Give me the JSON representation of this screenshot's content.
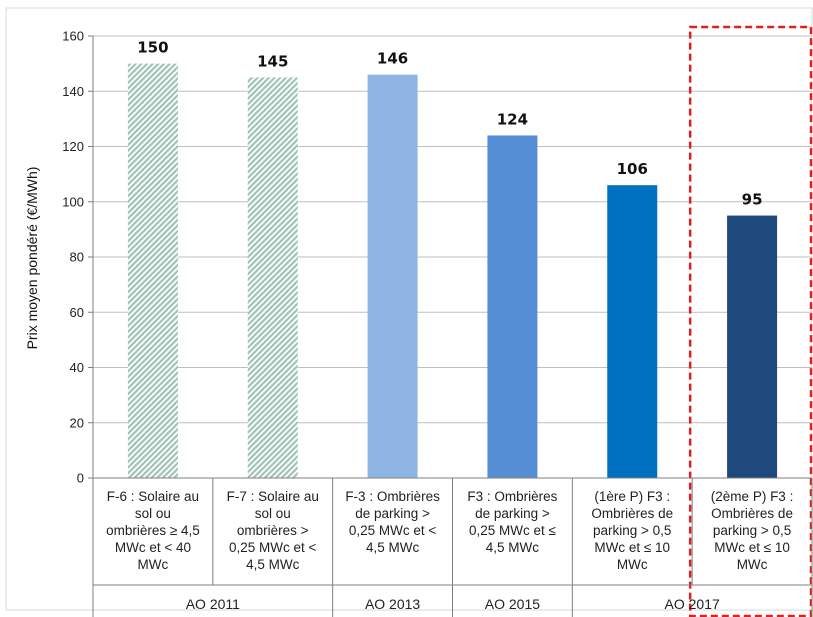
{
  "chart_data": {
    "type": "bar",
    "ylabel": "Prix moyen pondéré (€/MWh)",
    "ylim": [
      0,
      160
    ],
    "yticks": [
      0,
      20,
      40,
      60,
      80,
      100,
      120,
      140,
      160
    ],
    "grid": true,
    "categories": [
      "F-6 : Solaire au sol ou ombrières ≥ 4,5 MWc et < 40 MWc",
      "F-7 : Solaire au sol ou ombrières > 0,25 MWc et < 4,5 MWc",
      "F-3 : Ombrières de parking > 0,25 MWc et < 4,5 MWc",
      "F3 : Ombrières de parking > 0,25 MWc et ≤ 4,5 MWc",
      "(1ère P) F3 : Ombrières de parking > 0,5 MWc et ≤ 10 MWc",
      "(2ème P) F3 : Ombrières de parking > 0,5 MWc et ≤ 10 MWc"
    ],
    "category_lines": [
      [
        "F-6 : Solaire au",
        "sol ou",
        "ombrières ≥ 4,5",
        "MWc et < 40",
        "MWc"
      ],
      [
        "F-7 : Solaire au",
        "sol ou",
        "ombrières >",
        "0,25 MWc et <",
        "4,5 MWc"
      ],
      [
        "F-3 : Ombrières",
        "de parking  >",
        "0,25 MWc et <",
        "4,5 MWc"
      ],
      [
        "F3 : Ombrières",
        "de parking  >",
        "0,25 MWc et ≤",
        "4,5 MWc"
      ],
      [
        "(1ère P) F3 :",
        "Ombrières de",
        "parking  > 0,5",
        "MWc et ≤ 10",
        "MWc"
      ],
      [
        "(2ème P) F3 :",
        "Ombrières de",
        "parking  > 0,5",
        "MWc et ≤ 10",
        "MWc"
      ]
    ],
    "values": [
      150,
      145,
      146,
      124,
      106,
      95
    ],
    "data_labels": [
      "150",
      "145",
      "146",
      "124",
      "106",
      "95"
    ],
    "bar_colors": [
      "#a9c9bc",
      "#a9c9bc",
      "#8db4e2",
      "#558ed5",
      "#0070c0",
      "#1f497d"
    ],
    "bar_patterns": [
      "hatched",
      "hatched",
      "solid",
      "solid",
      "solid",
      "solid"
    ],
    "groups": [
      {
        "label": "AO 2011",
        "span": 2
      },
      {
        "label": "AO 2013",
        "span": 1
      },
      {
        "label": "AO 2015",
        "span": 1
      },
      {
        "label": "AO 2017",
        "span": 2
      }
    ],
    "highlight": {
      "style": "dashed-box",
      "color": "#e02020",
      "category_index": 5
    }
  }
}
